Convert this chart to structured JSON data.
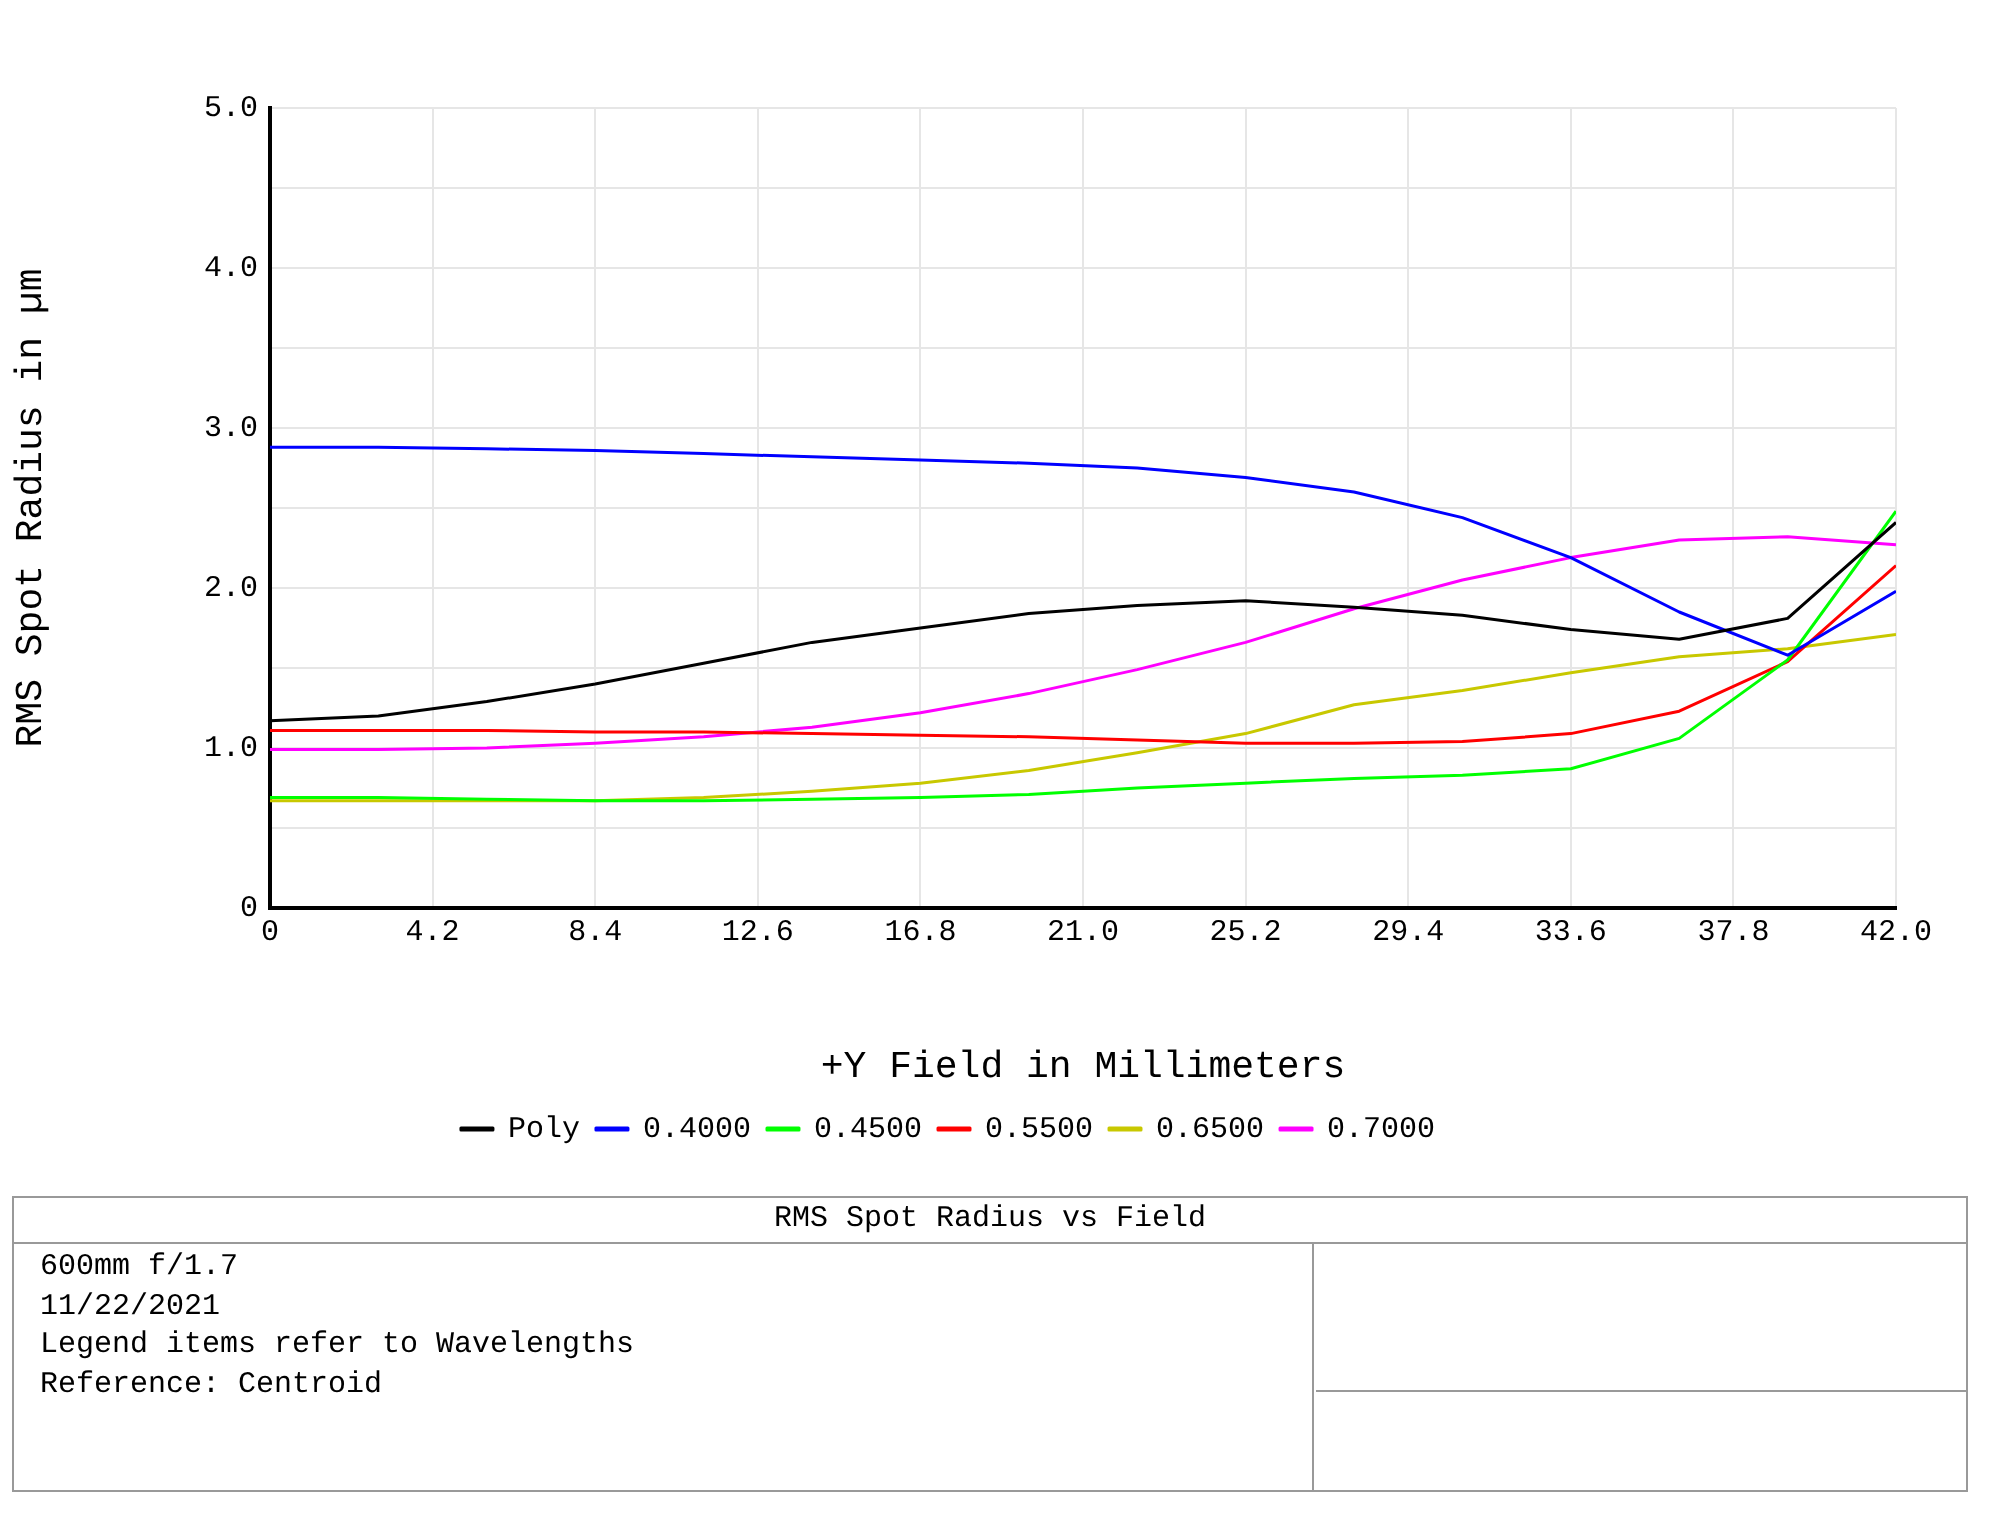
{
  "chart_data": {
    "type": "line",
    "xlabel": "+Y Field in Millimeters",
    "ylabel": "RMS Spot Radius in µm",
    "x": [
      0,
      2.8,
      5.6,
      8.4,
      11.2,
      14,
      16.8,
      19.6,
      22.4,
      25.2,
      28,
      30.8,
      33.6,
      36.4,
      39.2,
      42
    ],
    "xlim": [
      0,
      42
    ],
    "xticks": [
      0,
      4.2,
      8.4,
      12.6,
      16.8,
      {
        "value": 21,
        "label": "21.0"
      },
      25.2,
      29.4,
      33.6,
      37.8,
      {
        "value": 42,
        "label": "42.0"
      }
    ],
    "ylim": [
      0,
      5
    ],
    "yticks": [
      0,
      {
        "value": 0.5,
        "label": null
      },
      {
        "value": 1,
        "label": "1.0"
      },
      {
        "value": 1.5,
        "label": null
      },
      {
        "value": 2,
        "label": "2.0"
      },
      {
        "value": 2.5,
        "label": null
      },
      {
        "value": 3,
        "label": "3.0"
      },
      {
        "value": 3.5,
        "label": null
      },
      {
        "value": 4,
        "label": "4.0"
      },
      {
        "value": 4.5,
        "label": null
      },
      {
        "value": 5,
        "label": "5.0"
      }
    ],
    "grid": true,
    "legend": "bottom",
    "marker": "none",
    "line_style": "solid",
    "series": [
      {
        "name": "Poly",
        "color": "#000000",
        "values": [
          1.17,
          1.2,
          1.29,
          1.4,
          1.53,
          1.66,
          1.75,
          1.84,
          1.89,
          1.92,
          1.88,
          1.83,
          1.74,
          1.68,
          1.81,
          2.41
        ]
      },
      {
        "name": "0.4000",
        "color": "#0000ff",
        "values": [
          2.88,
          2.88,
          2.87,
          2.86,
          2.84,
          2.82,
          2.8,
          2.78,
          2.75,
          2.69,
          2.6,
          2.44,
          2.19,
          1.85,
          1.58,
          1.98
        ]
      },
      {
        "name": "0.4500",
        "color": "#00ff00",
        "values": [
          0.69,
          0.69,
          0.68,
          0.67,
          0.67,
          0.68,
          0.69,
          0.71,
          0.75,
          0.78,
          0.81,
          0.83,
          0.87,
          1.06,
          1.55,
          2.48
        ]
      },
      {
        "name": "0.5500",
        "color": "#ff0000",
        "values": [
          1.11,
          1.11,
          1.11,
          1.1,
          1.1,
          1.09,
          1.08,
          1.07,
          1.05,
          1.03,
          1.03,
          1.04,
          1.09,
          1.23,
          1.54,
          2.14
        ]
      },
      {
        "name": "0.6500",
        "color": "#c8c800",
        "values": [
          0.67,
          0.67,
          0.67,
          0.67,
          0.69,
          0.73,
          0.78,
          0.86,
          0.97,
          1.09,
          1.27,
          1.36,
          1.47,
          1.57,
          1.62,
          1.71
        ]
      },
      {
        "name": "0.7000",
        "color": "#ff00ff",
        "values": [
          0.99,
          0.99,
          1.0,
          1.03,
          1.07,
          1.13,
          1.22,
          1.34,
          1.49,
          1.66,
          1.87,
          2.05,
          2.19,
          2.3,
          2.32,
          2.27
        ]
      }
    ],
    "annotations": [
      "RMS Spot Radius vs Field",
      "600mm f/1.7",
      "11/22/2021",
      "Legend items refer to Wavelengths",
      "Reference: Centroid"
    ]
  }
}
